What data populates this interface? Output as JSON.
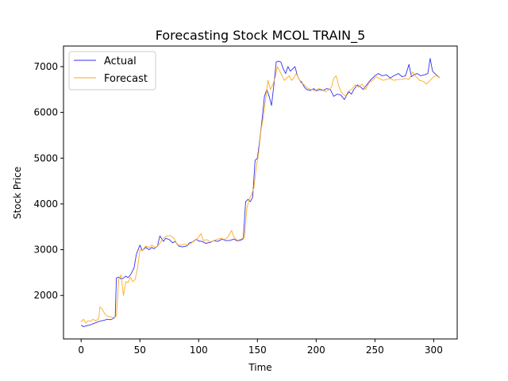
{
  "chart_data": {
    "type": "line",
    "title": "Forecasting Stock MCOL TRAIN_5",
    "xlabel": "Time",
    "ylabel": "Stock Price",
    "xlim": [
      -15,
      320
    ],
    "ylim": [
      1050,
      7450
    ],
    "xticks": [
      0,
      50,
      100,
      150,
      200,
      250,
      300
    ],
    "yticks": [
      2000,
      3000,
      4000,
      5000,
      6000,
      7000
    ],
    "grid": false,
    "legend_position": "top-left",
    "series": [
      {
        "name": "Actual",
        "color": "#3333ee",
        "points": [
          [
            0,
            1350
          ],
          [
            2,
            1320
          ],
          [
            5,
            1340
          ],
          [
            8,
            1360
          ],
          [
            10,
            1380
          ],
          [
            12,
            1400
          ],
          [
            15,
            1430
          ],
          [
            18,
            1450
          ],
          [
            20,
            1460
          ],
          [
            22,
            1480
          ],
          [
            25,
            1470
          ],
          [
            27,
            1490
          ],
          [
            29,
            1530
          ],
          [
            30,
            2380
          ],
          [
            32,
            2400
          ],
          [
            34,
            2360
          ],
          [
            36,
            2380
          ],
          [
            38,
            2420
          ],
          [
            40,
            2390
          ],
          [
            42,
            2450
          ],
          [
            45,
            2600
          ],
          [
            47,
            2900
          ],
          [
            50,
            3100
          ],
          [
            52,
            2980
          ],
          [
            55,
            3050
          ],
          [
            58,
            3000
          ],
          [
            60,
            3050
          ],
          [
            62,
            3020
          ],
          [
            65,
            3080
          ],
          [
            67,
            3300
          ],
          [
            70,
            3180
          ],
          [
            72,
            3250
          ],
          [
            75,
            3220
          ],
          [
            78,
            3150
          ],
          [
            80,
            3180
          ],
          [
            83,
            3080
          ],
          [
            86,
            3060
          ],
          [
            90,
            3080
          ],
          [
            92,
            3150
          ],
          [
            95,
            3170
          ],
          [
            98,
            3230
          ],
          [
            100,
            3190
          ],
          [
            103,
            3180
          ],
          [
            106,
            3140
          ],
          [
            110,
            3160
          ],
          [
            113,
            3200
          ],
          [
            116,
            3180
          ],
          [
            120,
            3230
          ],
          [
            123,
            3200
          ],
          [
            126,
            3200
          ],
          [
            130,
            3230
          ],
          [
            133,
            3190
          ],
          [
            136,
            3210
          ],
          [
            138,
            3240
          ],
          [
            140,
            4050
          ],
          [
            142,
            4100
          ],
          [
            144,
            4050
          ],
          [
            146,
            4150
          ],
          [
            148,
            4950
          ],
          [
            150,
            5000
          ],
          [
            152,
            5400
          ],
          [
            154,
            5850
          ],
          [
            156,
            6350
          ],
          [
            158,
            6500
          ],
          [
            160,
            6350
          ],
          [
            162,
            6150
          ],
          [
            164,
            6600
          ],
          [
            166,
            7100
          ],
          [
            168,
            7120
          ],
          [
            170,
            7100
          ],
          [
            172,
            6950
          ],
          [
            174,
            6850
          ],
          [
            176,
            7000
          ],
          [
            178,
            6900
          ],
          [
            180,
            6950
          ],
          [
            182,
            7000
          ],
          [
            184,
            6800
          ],
          [
            186,
            6700
          ],
          [
            188,
            6650
          ],
          [
            190,
            6550
          ],
          [
            192,
            6500
          ],
          [
            195,
            6480
          ],
          [
            198,
            6520
          ],
          [
            200,
            6470
          ],
          [
            203,
            6500
          ],
          [
            206,
            6480
          ],
          [
            209,
            6520
          ],
          [
            212,
            6500
          ],
          [
            215,
            6350
          ],
          [
            218,
            6400
          ],
          [
            221,
            6380
          ],
          [
            224,
            6280
          ],
          [
            226,
            6380
          ],
          [
            228,
            6450
          ],
          [
            230,
            6400
          ],
          [
            232,
            6500
          ],
          [
            235,
            6600
          ],
          [
            238,
            6550
          ],
          [
            240,
            6500
          ],
          [
            243,
            6600
          ],
          [
            246,
            6700
          ],
          [
            250,
            6800
          ],
          [
            253,
            6850
          ],
          [
            256,
            6800
          ],
          [
            260,
            6820
          ],
          [
            263,
            6750
          ],
          [
            266,
            6800
          ],
          [
            270,
            6850
          ],
          [
            273,
            6780
          ],
          [
            276,
            6800
          ],
          [
            279,
            7050
          ],
          [
            281,
            6780
          ],
          [
            283,
            6820
          ],
          [
            286,
            6850
          ],
          [
            289,
            6800
          ],
          [
            292,
            6820
          ],
          [
            295,
            6850
          ],
          [
            297,
            7180
          ],
          [
            299,
            6900
          ],
          [
            301,
            6850
          ],
          [
            303,
            6800
          ],
          [
            305,
            6760
          ]
        ]
      },
      {
        "name": "Forecast",
        "color": "#ffaa22",
        "points": [
          [
            0,
            1420
          ],
          [
            2,
            1480
          ],
          [
            4,
            1400
          ],
          [
            6,
            1450
          ],
          [
            8,
            1430
          ],
          [
            10,
            1480
          ],
          [
            12,
            1450
          ],
          [
            14,
            1470
          ],
          [
            15,
            1500
          ],
          [
            16,
            1750
          ],
          [
            18,
            1700
          ],
          [
            20,
            1600
          ],
          [
            22,
            1550
          ],
          [
            25,
            1530
          ],
          [
            28,
            1520
          ],
          [
            30,
            1550
          ],
          [
            32,
            2350
          ],
          [
            34,
            2450
          ],
          [
            36,
            2000
          ],
          [
            38,
            2300
          ],
          [
            40,
            2280
          ],
          [
            42,
            2400
          ],
          [
            44,
            2300
          ],
          [
            46,
            2350
          ],
          [
            48,
            2600
          ],
          [
            50,
            3000
          ],
          [
            52,
            2980
          ],
          [
            55,
            3080
          ],
          [
            58,
            3050
          ],
          [
            60,
            3100
          ],
          [
            63,
            3050
          ],
          [
            66,
            3100
          ],
          [
            68,
            3180
          ],
          [
            70,
            3250
          ],
          [
            73,
            3300
          ],
          [
            76,
            3310
          ],
          [
            79,
            3250
          ],
          [
            82,
            3100
          ],
          [
            85,
            3100
          ],
          [
            88,
            3120
          ],
          [
            91,
            3100
          ],
          [
            94,
            3150
          ],
          [
            97,
            3200
          ],
          [
            100,
            3280
          ],
          [
            102,
            3350
          ],
          [
            104,
            3200
          ],
          [
            107,
            3220
          ],
          [
            110,
            3170
          ],
          [
            113,
            3200
          ],
          [
            116,
            3230
          ],
          [
            119,
            3250
          ],
          [
            122,
            3220
          ],
          [
            125,
            3280
          ],
          [
            128,
            3420
          ],
          [
            130,
            3280
          ],
          [
            133,
            3200
          ],
          [
            136,
            3230
          ],
          [
            139,
            3270
          ],
          [
            141,
            3900
          ],
          [
            143,
            4100
          ],
          [
            145,
            4200
          ],
          [
            147,
            4350
          ],
          [
            149,
            4800
          ],
          [
            151,
            5100
          ],
          [
            153,
            5600
          ],
          [
            155,
            5900
          ],
          [
            157,
            6300
          ],
          [
            159,
            6700
          ],
          [
            161,
            6500
          ],
          [
            163,
            6600
          ],
          [
            165,
            6750
          ],
          [
            167,
            7000
          ],
          [
            169,
            6900
          ],
          [
            171,
            6800
          ],
          [
            173,
            6700
          ],
          [
            175,
            6750
          ],
          [
            177,
            6800
          ],
          [
            179,
            6700
          ],
          [
            181,
            6750
          ],
          [
            183,
            6850
          ],
          [
            185,
            6750
          ],
          [
            187,
            6650
          ],
          [
            190,
            6600
          ],
          [
            193,
            6520
          ],
          [
            196,
            6500
          ],
          [
            199,
            6480
          ],
          [
            202,
            6520
          ],
          [
            205,
            6500
          ],
          [
            208,
            6450
          ],
          [
            211,
            6500
          ],
          [
            213,
            6550
          ],
          [
            215,
            6750
          ],
          [
            217,
            6800
          ],
          [
            219,
            6600
          ],
          [
            221,
            6450
          ],
          [
            223,
            6400
          ],
          [
            225,
            6350
          ],
          [
            227,
            6450
          ],
          [
            230,
            6500
          ],
          [
            233,
            6600
          ],
          [
            236,
            6550
          ],
          [
            239,
            6620
          ],
          [
            242,
            6500
          ],
          [
            245,
            6650
          ],
          [
            248,
            6700
          ],
          [
            251,
            6780
          ],
          [
            254,
            6740
          ],
          [
            257,
            6700
          ],
          [
            260,
            6720
          ],
          [
            263,
            6740
          ],
          [
            266,
            6700
          ],
          [
            270,
            6720
          ],
          [
            273,
            6720
          ],
          [
            276,
            6740
          ],
          [
            279,
            6720
          ],
          [
            282,
            6880
          ],
          [
            285,
            6780
          ],
          [
            288,
            6700
          ],
          [
            291,
            6680
          ],
          [
            294,
            6620
          ],
          [
            297,
            6700
          ],
          [
            300,
            6780
          ],
          [
            303,
            6820
          ],
          [
            305,
            6750
          ]
        ]
      }
    ]
  }
}
